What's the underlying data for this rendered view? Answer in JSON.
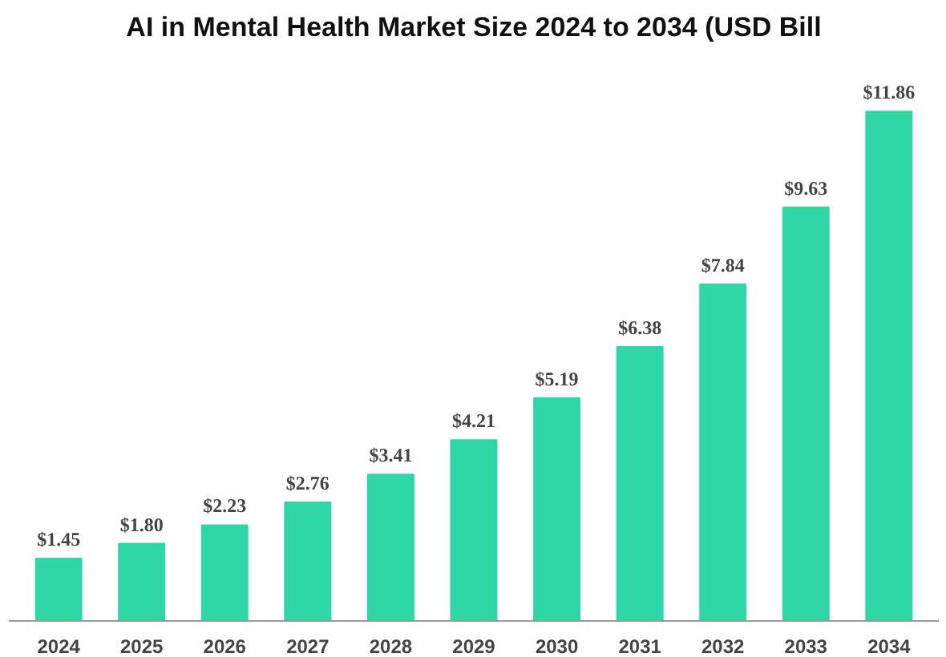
{
  "chart_data": {
    "type": "bar",
    "title": "AI in Mental Health Market Size 2024 to 2034 (USD Bill",
    "categories": [
      "2024",
      "2025",
      "2026",
      "2027",
      "2028",
      "2029",
      "2030",
      "2031",
      "2032",
      "2033",
      "2034"
    ],
    "values": [
      1.45,
      1.8,
      2.23,
      2.76,
      3.41,
      4.21,
      5.19,
      6.38,
      7.84,
      9.63,
      11.86
    ],
    "value_labels": [
      "$1.45",
      "$1.80",
      "$2.23",
      "$2.76",
      "$3.41",
      "$4.21",
      "$5.19",
      "$6.38",
      "$7.84",
      "$9.63",
      "$11.86"
    ],
    "color": "#2fd6a6"
  }
}
